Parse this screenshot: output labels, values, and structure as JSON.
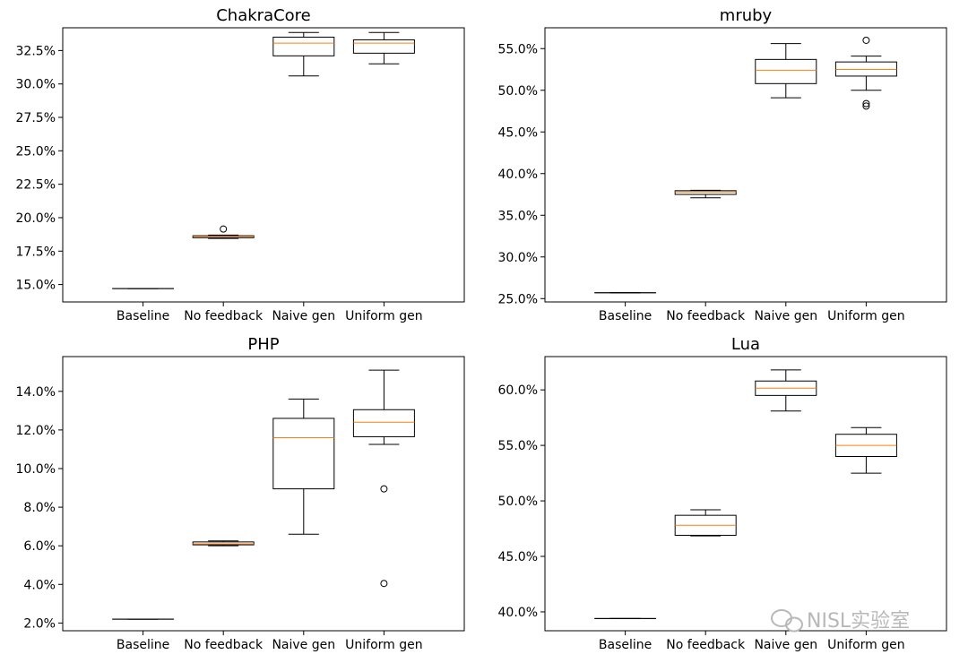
{
  "watermark": "NISL实验室",
  "colors": {
    "box": "#000000",
    "median": "#ff7f0e",
    "flier": "#000000",
    "watermark": "#b8b8b8"
  },
  "chart_data": [
    {
      "type": "box",
      "title": "ChakraCore",
      "categories": [
        "Baseline",
        "No feedback",
        "Naive gen",
        "Uniform gen"
      ],
      "ylim": [
        13.7,
        34.2
      ],
      "yticks": [
        15.0,
        17.5,
        20.0,
        22.5,
        25.0,
        27.5,
        30.0,
        32.5
      ],
      "ytick_labels": [
        "15.0%",
        "17.5%",
        "20.0%",
        "22.5%",
        "25.0%",
        "27.5%",
        "30.0%",
        "32.5%"
      ],
      "boxes": [
        {
          "whislo": 14.7,
          "q1": 14.7,
          "med": 14.7,
          "q3": 14.7,
          "whishi": 14.7,
          "fliers": []
        },
        {
          "whislo": 18.45,
          "q1": 18.5,
          "med": 18.6,
          "q3": 18.65,
          "whishi": 18.7,
          "fliers": [
            19.15
          ]
        },
        {
          "whislo": 30.6,
          "q1": 32.1,
          "med": 33.05,
          "q3": 33.5,
          "whishi": 33.85,
          "fliers": []
        },
        {
          "whislo": 31.5,
          "q1": 32.3,
          "med": 33.05,
          "q3": 33.3,
          "whishi": 33.85,
          "fliers": []
        }
      ]
    },
    {
      "type": "box",
      "title": "mruby",
      "categories": [
        "Baseline",
        "No feedback",
        "Naive gen",
        "Uniform gen"
      ],
      "ylim": [
        24.6,
        57.5
      ],
      "yticks": [
        25.0,
        30.0,
        35.0,
        40.0,
        45.0,
        50.0,
        55.0
      ],
      "ytick_labels": [
        "25.0%",
        "30.0%",
        "35.0%",
        "40.0%",
        "45.0%",
        "50.0%",
        "55.0%"
      ],
      "boxes": [
        {
          "whislo": 25.7,
          "q1": 25.7,
          "med": 25.7,
          "q3": 25.7,
          "whishi": 25.7,
          "fliers": []
        },
        {
          "whislo": 37.1,
          "q1": 37.5,
          "med": 37.8,
          "q3": 37.95,
          "whishi": 38.0,
          "fliers": []
        },
        {
          "whislo": 49.1,
          "q1": 50.8,
          "med": 52.4,
          "q3": 53.7,
          "whishi": 55.6,
          "fliers": []
        },
        {
          "whislo": 50.0,
          "q1": 51.7,
          "med": 52.5,
          "q3": 53.4,
          "whishi": 54.1,
          "fliers": [
            48.1,
            48.4,
            56.0
          ]
        }
      ]
    },
    {
      "type": "box",
      "title": "PHP",
      "categories": [
        "Baseline",
        "No feedback",
        "Naive gen",
        "Uniform gen"
      ],
      "ylim": [
        1.6,
        15.8
      ],
      "yticks": [
        2.0,
        4.0,
        6.0,
        8.0,
        10.0,
        12.0,
        14.0
      ],
      "ytick_labels": [
        "2.0%",
        "4.0%",
        "6.0%",
        "8.0%",
        "10.0%",
        "12.0%",
        "14.0%"
      ],
      "boxes": [
        {
          "whislo": 2.2,
          "q1": 2.2,
          "med": 2.2,
          "q3": 2.2,
          "whishi": 2.2,
          "fliers": []
        },
        {
          "whislo": 6.0,
          "q1": 6.05,
          "med": 6.1,
          "q3": 6.2,
          "whishi": 6.25,
          "fliers": []
        },
        {
          "whislo": 6.6,
          "q1": 8.95,
          "med": 11.6,
          "q3": 12.6,
          "whishi": 13.6,
          "fliers": []
        },
        {
          "whislo": 11.25,
          "q1": 11.65,
          "med": 12.4,
          "q3": 13.05,
          "whishi": 15.1,
          "fliers": [
            8.95,
            4.05
          ]
        }
      ]
    },
    {
      "type": "box",
      "title": "Lua",
      "categories": [
        "Baseline",
        "No feedback",
        "Naive gen",
        "Uniform gen"
      ],
      "ylim": [
        38.3,
        63.0
      ],
      "yticks": [
        40.0,
        45.0,
        50.0,
        55.0,
        60.0
      ],
      "ytick_labels": [
        "40.0%",
        "45.0%",
        "50.0%",
        "55.0%",
        "60.0%"
      ],
      "boxes": [
        {
          "whislo": 39.4,
          "q1": 39.4,
          "med": 39.4,
          "q3": 39.4,
          "whishi": 39.4,
          "fliers": []
        },
        {
          "whislo": 46.85,
          "q1": 46.9,
          "med": 47.8,
          "q3": 48.7,
          "whishi": 49.2,
          "fliers": []
        },
        {
          "whislo": 58.1,
          "q1": 59.5,
          "med": 60.15,
          "q3": 60.8,
          "whishi": 61.8,
          "fliers": []
        },
        {
          "whislo": 52.5,
          "q1": 54.0,
          "med": 55.0,
          "q3": 56.0,
          "whishi": 56.6,
          "fliers": []
        }
      ]
    }
  ]
}
